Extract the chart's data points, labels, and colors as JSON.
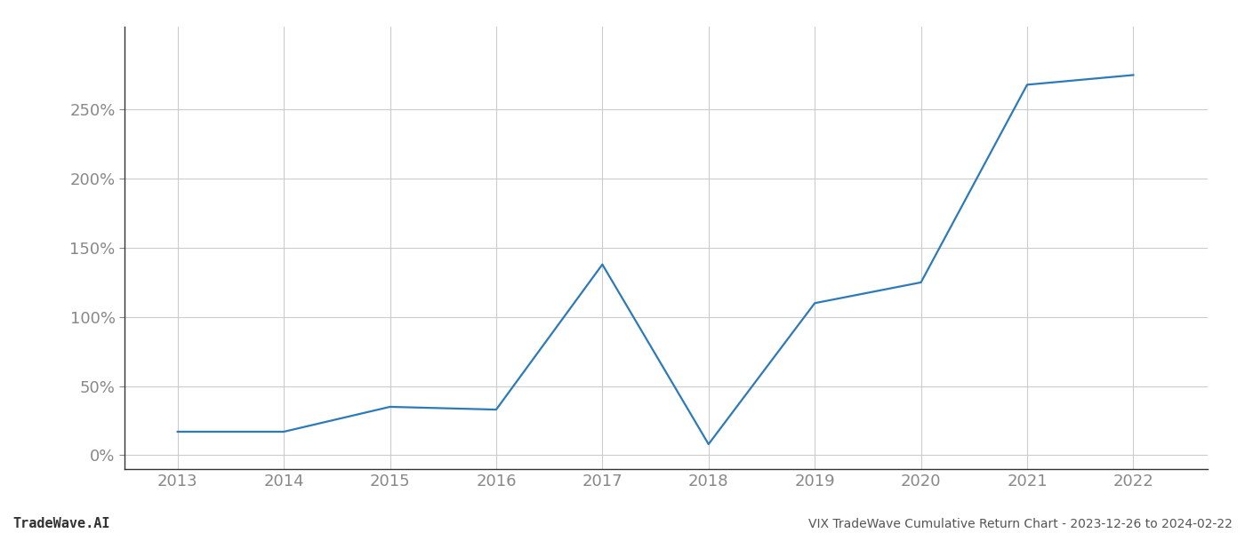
{
  "x_years": [
    2013,
    2014,
    2015,
    2016,
    2017,
    2018,
    2019,
    2020,
    2021,
    2022
  ],
  "y_values": [
    17,
    17,
    35,
    33,
    138,
    8,
    110,
    125,
    268,
    275
  ],
  "line_color": "#2d7ab8",
  "line_width": 1.6,
  "background_color": "#ffffff",
  "grid_color": "#cccccc",
  "title": "VIX TradeWave Cumulative Return Chart - 2023-12-26 to 2024-02-22",
  "footer_left": "TradeWave.AI",
  "yticks": [
    0,
    50,
    100,
    150,
    200,
    250
  ],
  "ylim": [
    -10,
    310
  ],
  "xlim": [
    2012.5,
    2022.7
  ]
}
